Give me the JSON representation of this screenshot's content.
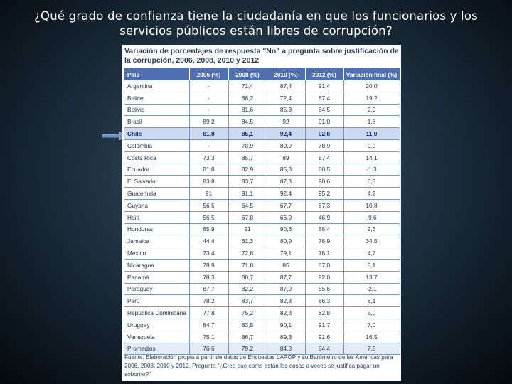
{
  "slide": {
    "title_line1": "¿Qué grado de confianza tiene la ciudadanía en que los funcionarios y los",
    "title_line2": "servicios públicos están libres de corrupción?"
  },
  "table": {
    "title": "Variación de porcentajes de respuesta \"No\" a pregunta sobre justificación de la corrupción, 2006, 2008, 2010 y 2012",
    "headers": [
      "País",
      "2006 (%)",
      "2008 (%)",
      "2010 (%)",
      "2012 (%)",
      "Variación final (%)"
    ],
    "rows": [
      [
        "Argentina",
        "-",
        "71,4",
        "87,4",
        "91,4",
        "20,0"
      ],
      [
        "Belice",
        "-",
        "68,2",
        "72,4",
        "87,4",
        "19,2"
      ],
      [
        "Bolivia",
        "-",
        "81,6",
        "85,3",
        "84,5",
        "2,9"
      ],
      [
        "Brasil",
        "89,2",
        "84,5",
        "92",
        "91,0",
        "1,8"
      ],
      [
        "Chile",
        "81,8",
        "85,1",
        "92,4",
        "92,8",
        "11,0"
      ],
      [
        "Colombia",
        "-",
        "78,9",
        "80,9",
        "78,9",
        "0,0"
      ],
      [
        "Costa Rica",
        "73,3",
        "85,7",
        "89",
        "87,4",
        "14,1"
      ],
      [
        "Ecuador",
        "81,8",
        "82,9",
        "85,3",
        "80,5",
        "-1,3"
      ],
      [
        "El Salvador",
        "83,8",
        "83,7",
        "87,3",
        "90,6",
        "6,8"
      ],
      [
        "Guatemala",
        "91",
        "91,1",
        "92,4",
        "95,2",
        "4,2"
      ],
      [
        "Guyana",
        "56,5",
        "64,5",
        "67,7",
        "67,3",
        "10,8"
      ],
      [
        "Haití",
        "56,5",
        "67,8",
        "66,9",
        "46,9",
        "-9,6"
      ],
      [
        "Honduras",
        "85,9",
        "91",
        "90,6",
        "88,4",
        "2,5"
      ],
      [
        "Jamaica",
        "44,4",
        "61,3",
        "80,9",
        "78,9",
        "34,5"
      ],
      [
        "México",
        "73,4",
        "72,8",
        "79,1",
        "78,1",
        "4,7"
      ],
      [
        "Nicaragua",
        "78,9",
        "71,8",
        "85",
        "87,0",
        "8,1"
      ],
      [
        "Panamá",
        "78,3",
        "80,7",
        "87,7",
        "92,0",
        "13,7"
      ],
      [
        "Paraguay",
        "87,7",
        "82,2",
        "87,9",
        "85,6",
        "-2,1"
      ],
      [
        "Perú",
        "78,2",
        "83,7",
        "82,8",
        "86,3",
        "8,1"
      ],
      [
        "República Dominicana",
        "77,8",
        "75,2",
        "82,3",
        "82,8",
        "5,0"
      ],
      [
        "Uruguay",
        "84,7",
        "83,5",
        "90,1",
        "91,7",
        "7,0"
      ],
      [
        "Venezuela",
        "75,1",
        "86,7",
        "89,3",
        "91,6",
        "16,5"
      ],
      [
        "Promedios",
        "76,6",
        "79,2",
        "84,3",
        "84,4",
        "7,8"
      ]
    ],
    "source": "Fuente: Elaboración propia a partir de datos de Encuestas LAPOP y su Barómetro de las Américas para 2006, 2008, 2010 y 2012. Pregunta \"¿Cree que como están las cosas a veces se justifica pagar un soborno?\""
  },
  "colors": {
    "header_bg": "#4f6fb1",
    "highlight_row_bg": "#cdd9ee",
    "arrow": "#6f8fc9"
  },
  "icons": {
    "pointer": "right-arrow-icon"
  }
}
